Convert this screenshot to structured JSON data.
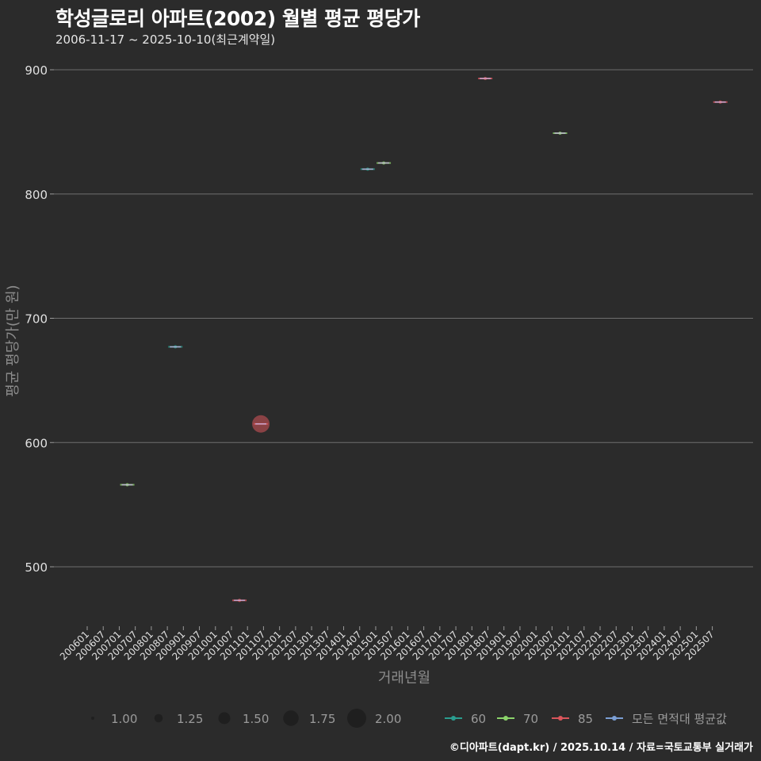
{
  "header": {
    "title": "학성글로리 아파트(2002) 월별 평균 평당가",
    "subtitle": "2006-11-17 ~ 2025-10-10(최근계약일)"
  },
  "footer": {
    "credit": "©디아파트(dapt.kr) / 2025.10.14 / 자료=국토교통부 실거래가"
  },
  "colors": {
    "background": "#2b2b2b",
    "grid": "#6e6e6e",
    "s60": "#2a9d8f",
    "s70": "#8bd36a",
    "s85": "#d9555b",
    "avg": "#7b9fd4"
  },
  "chart_data": {
    "type": "scatter",
    "title": "학성글로리 아파트(2002) 월별 평균 평당가",
    "subtitle": "2006-11-17 ~ 2025-10-10(최근계약일)",
    "xlabel": "거래년월",
    "ylabel": "평균 평당가(만 원)",
    "ylim": [
      450,
      905
    ],
    "yticks": [
      500,
      600,
      700,
      800,
      900
    ],
    "grid": true,
    "x_ticks": [
      "200601",
      "200607",
      "200701",
      "200707",
      "200801",
      "200807",
      "200901",
      "200907",
      "201001",
      "201007",
      "201101",
      "201107",
      "201201",
      "201207",
      "201301",
      "201307",
      "201401",
      "201407",
      "201501",
      "201507",
      "201601",
      "201607",
      "201701",
      "201707",
      "201801",
      "201807",
      "201901",
      "201907",
      "202001",
      "202007",
      "202101",
      "202107",
      "202201",
      "202207",
      "202301",
      "202307",
      "202401",
      "202407",
      "202501",
      "202507"
    ],
    "series": [
      {
        "name": "60",
        "color": "#2a9d8f",
        "points": [
          {
            "x": "200810",
            "y": 677,
            "size": 1.0
          },
          {
            "x": "201410",
            "y": 820,
            "size": 1.0
          }
        ]
      },
      {
        "name": "70",
        "color": "#8bd36a",
        "points": [
          {
            "x": "200704",
            "y": 566,
            "size": 1.0
          },
          {
            "x": "201504",
            "y": 825,
            "size": 1.0
          },
          {
            "x": "202010",
            "y": 849,
            "size": 1.0
          }
        ]
      },
      {
        "name": "85",
        "color": "#d9555b",
        "points": [
          {
            "x": "201010",
            "y": 473,
            "size": 1.0
          },
          {
            "x": "201106",
            "y": 615,
            "size": 2.0
          },
          {
            "x": "201806",
            "y": 893,
            "size": 1.0
          },
          {
            "x": "202510",
            "y": 874,
            "size": 1.0
          }
        ]
      },
      {
        "name": "모든 면적대 평균값",
        "color": "#7b9fd4",
        "points": [
          {
            "x": "200704",
            "y": 566
          },
          {
            "x": "200810",
            "y": 677
          },
          {
            "x": "201010",
            "y": 473
          },
          {
            "x": "201106",
            "y": 615
          },
          {
            "x": "201410",
            "y": 820
          },
          {
            "x": "201504",
            "y": 825
          },
          {
            "x": "201806",
            "y": 893
          },
          {
            "x": "202010",
            "y": 849
          },
          {
            "x": "202510",
            "y": 874
          }
        ]
      }
    ],
    "legend_size": {
      "title": "",
      "values": [
        "1.00",
        "1.25",
        "1.50",
        "1.75",
        "2.00"
      ]
    },
    "legend_color": {
      "values": [
        "60",
        "70",
        "85",
        "모든 면적대 평균값"
      ]
    },
    "legend_position": "bottom"
  }
}
